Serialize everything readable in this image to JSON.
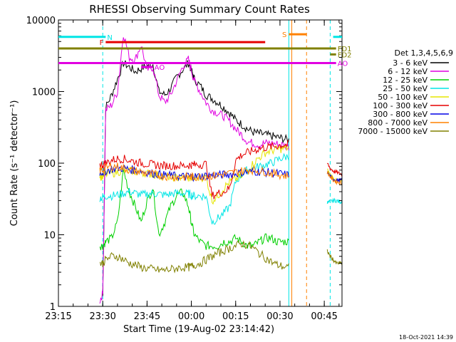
{
  "chart_data": {
    "type": "line",
    "title": "RHESSI Observing Summary Count Rates",
    "xlabel": "Start Time (19-Aug-02 23:14:42)",
    "ylabel": "Count Rate (s⁻¹ detector⁻¹)",
    "ylim": [
      1,
      10000
    ],
    "yscale": "log",
    "xlim": [
      "23:15",
      "00:51"
    ],
    "x_ticks": [
      "23:15",
      "23:30",
      "23:45",
      "00:00",
      "00:15",
      "00:30",
      "00:45"
    ],
    "y_ticks": [
      "1",
      "10",
      "100",
      "1000",
      "10000"
    ],
    "legend_title": "Det 1,3,4,5,6,9",
    "legend_position": "right",
    "footer": "18-Oct-2021 14:39",
    "x": [
      "23:15",
      "23:29",
      "23:30",
      "23:31",
      "23:33",
      "23:35",
      "23:37",
      "23:39",
      "23:41",
      "23:43",
      "23:45",
      "23:47",
      "23:49",
      "23:51",
      "23:53",
      "23:55",
      "23:57",
      "23:59",
      "00:00",
      "00:01",
      "00:03",
      "00:05",
      "00:07",
      "00:09",
      "00:11",
      "00:13",
      "00:15",
      "00:17",
      "00:19",
      "00:21",
      "00:23",
      "00:25",
      "00:27",
      "00:29",
      "00:31",
      "00:33"
    ],
    "series": [
      {
        "name": "3 - 6 keV",
        "color": "#000000",
        "values": [
          null,
          null,
          1.4,
          600,
          900,
          1500,
          2500,
          2200,
          1900,
          2100,
          2300,
          2400,
          1000,
          900,
          1100,
          1600,
          2000,
          2500,
          2000,
          1500,
          1200,
          900,
          800,
          700,
          600,
          500,
          400,
          350,
          300,
          270,
          260,
          250,
          240,
          230,
          220,
          210
        ]
      },
      {
        "name": "6 - 12 keV",
        "color": "#e100e1",
        "values": [
          null,
          1.2,
          1.5,
          550,
          650,
          1000,
          6500,
          3000,
          2800,
          4500,
          2000,
          2200,
          900,
          700,
          900,
          1400,
          2200,
          2800,
          2000,
          1400,
          1000,
          700,
          550,
          500,
          450,
          380,
          300,
          250,
          200,
          190,
          180,
          190,
          190,
          185,
          180,
          170
        ]
      },
      {
        "name": "12 - 25 keV",
        "color": "#00d000",
        "values": [
          null,
          7,
          7,
          8,
          9,
          15,
          80,
          40,
          25,
          15,
          30,
          45,
          10,
          15,
          25,
          35,
          40,
          25,
          15,
          10,
          8,
          7,
          7,
          7,
          8,
          8,
          9,
          8,
          7,
          7,
          8,
          9,
          9,
          8,
          8,
          8
        ]
      },
      {
        "name": "25 - 50 keV",
        "color": "#00e5e5",
        "values": [
          null,
          33,
          33,
          35,
          35,
          36,
          38,
          40,
          38,
          36,
          37,
          38,
          37,
          36,
          37,
          38,
          38,
          37,
          36,
          35,
          35,
          34,
          15,
          17,
          20,
          25,
          55,
          70,
          80,
          85,
          90,
          95,
          100,
          110,
          120,
          125
        ]
      },
      {
        "name": "50 - 100 keV",
        "color": "#e5e500",
        "values": [
          null,
          65,
          65,
          70,
          72,
          75,
          80,
          78,
          76,
          74,
          72,
          70,
          68,
          66,
          64,
          63,
          62,
          62,
          62,
          62,
          63,
          64,
          30,
          35,
          45,
          55,
          60,
          65,
          80,
          100,
          120,
          140,
          150,
          155,
          160,
          165
        ]
      },
      {
        "name": "100 - 300 keV",
        "color": "#e50000",
        "values": [
          null,
          95,
          95,
          100,
          110,
          115,
          115,
          110,
          105,
          100,
          98,
          95,
          93,
          92,
          92,
          92,
          92,
          93,
          95,
          95,
          96,
          97,
          35,
          38,
          40,
          45,
          110,
          130,
          140,
          150,
          160,
          165,
          170,
          175,
          180,
          180
        ]
      },
      {
        "name": "300 - 800 keV",
        "color": "#0000e5",
        "values": [
          null,
          75,
          75,
          78,
          82,
          85,
          85,
          82,
          80,
          78,
          75,
          72,
          70,
          68,
          67,
          66,
          65,
          65,
          65,
          65,
          66,
          67,
          68,
          68,
          69,
          70,
          72,
          74,
          75,
          76,
          76,
          75,
          74,
          72,
          70,
          68
        ]
      },
      {
        "name": "800 - 7000 keV",
        "color": "#ff8000",
        "values": [
          null,
          80,
          80,
          85,
          90,
          90,
          85,
          80,
          78,
          75,
          72,
          70,
          68,
          66,
          65,
          64,
          64,
          64,
          64,
          64,
          65,
          66,
          67,
          68,
          70,
          72,
          75,
          78,
          80,
          80,
          78,
          76,
          72,
          70,
          68,
          66
        ]
      },
      {
        "name": "7000 - 15000 keV",
        "color": "#808000",
        "values": [
          null,
          4,
          4,
          4.5,
          5,
          5,
          4.5,
          4,
          3.8,
          3.5,
          3.4,
          3.3,
          3.2,
          3.2,
          3.3,
          3.4,
          3.5,
          3.5,
          3.6,
          3.8,
          4,
          4.5,
          5,
          5.5,
          6,
          6.5,
          7,
          7.5,
          7.2,
          6.5,
          5.5,
          4.8,
          4.2,
          3.8,
          3.6,
          3.5
        ]
      }
    ],
    "post_gap": {
      "x": [
        "00:46",
        "00:47",
        "00:48",
        "00:49",
        "00:50",
        "00:51"
      ],
      "values": {
        "3 - 6 keV": [
          null,
          null,
          null,
          null,
          null,
          null
        ],
        "6 - 12 keV": [
          null,
          null,
          null,
          null,
          null,
          null
        ],
        "12 - 25 keV": [
          null,
          null,
          null,
          null,
          null,
          null
        ],
        "25 - 50 keV": [
          28,
          29,
          30,
          30,
          29,
          29
        ],
        "50 - 100 keV": [
          80,
          70,
          62,
          58,
          56,
          55
        ],
        "100 - 300 keV": [
          100,
          85,
          78,
          75,
          72,
          70
        ],
        "300 - 800 keV": [
          75,
          65,
          60,
          58,
          57,
          57
        ],
        "800 - 7000 keV": [
          75,
          65,
          58,
          55,
          54,
          53
        ],
        "7000 - 15000 keV": [
          6,
          5,
          4.5,
          4,
          4,
          4
        ]
      }
    },
    "flag_bars": [
      {
        "label": "N",
        "color": "#00e5e5",
        "segments": [
          [
            "23:15",
            "23:31"
          ],
          [
            "00:48",
            "00:51"
          ]
        ],
        "level": 5800
      },
      {
        "label": "F",
        "color": "#e50000",
        "segments": [
          [
            "23:31",
            "00:25"
          ]
        ],
        "level": 4900
      },
      {
        "label": "S",
        "color": "#ff8000",
        "segments": [
          [
            "00:33",
            "00:39"
          ]
        ],
        "level": 6300
      },
      {
        "label": "FD1",
        "color": "#808000",
        "segments": [
          [
            "23:15",
            "00:49"
          ]
        ],
        "level": 4000
      },
      {
        "label": "FD2",
        "color": "#808000",
        "segments": [
          [
            "00:47",
            "00:49"
          ]
        ],
        "level": 3300
      },
      {
        "label": "AO",
        "color": "#e100e1",
        "segments": [
          [
            "23:15",
            "00:49"
          ]
        ],
        "level": 2500
      },
      {
        "label": "AO",
        "color": "#e100e1",
        "segments": [
          [
            "23:43",
            "23:47"
          ]
        ],
        "level": 2200
      }
    ],
    "vertical_markers": [
      {
        "x": "23:30",
        "color": "#00e5e5",
        "style": "dashed"
      },
      {
        "x": "00:33",
        "color": "#00e5e5",
        "style": "solid"
      },
      {
        "x": "00:34",
        "color": "#ff8000",
        "style": "solid"
      },
      {
        "x": "00:39",
        "color": "#ff8000",
        "style": "dashed"
      },
      {
        "x": "00:47",
        "color": "#00e5e5",
        "style": "dashed"
      }
    ]
  }
}
